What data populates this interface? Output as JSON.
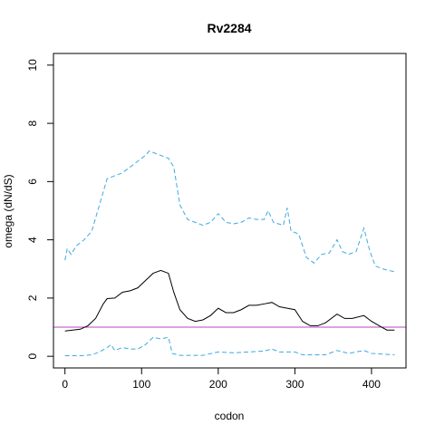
{
  "chart_data": {
    "type": "line",
    "title": "Rv2284",
    "xlabel": "codon",
    "ylabel": "omega (dN/dS)",
    "xlim": [
      -15,
      445
    ],
    "ylim": [
      -0.4,
      10.4
    ],
    "xticks": [
      0,
      100,
      200,
      300,
      400
    ],
    "yticks": [
      0,
      2,
      4,
      6,
      8,
      10
    ],
    "grid": false,
    "reference_line": {
      "y": 1,
      "color": "#bb44bb"
    },
    "series": [
      {
        "style": "solid",
        "color": "#000000",
        "points": [
          [
            0,
            0.87
          ],
          [
            10,
            0.9
          ],
          [
            20,
            0.93
          ],
          [
            30,
            1.05
          ],
          [
            40,
            1.3
          ],
          [
            50,
            1.8
          ],
          [
            55,
            1.98
          ],
          [
            65,
            2.0
          ],
          [
            75,
            2.2
          ],
          [
            85,
            2.25
          ],
          [
            95,
            2.35
          ],
          [
            105,
            2.6
          ],
          [
            115,
            2.85
          ],
          [
            125,
            2.95
          ],
          [
            135,
            2.85
          ],
          [
            142,
            2.2
          ],
          [
            150,
            1.6
          ],
          [
            160,
            1.3
          ],
          [
            170,
            1.2
          ],
          [
            180,
            1.25
          ],
          [
            190,
            1.4
          ],
          [
            200,
            1.65
          ],
          [
            210,
            1.5
          ],
          [
            220,
            1.5
          ],
          [
            230,
            1.6
          ],
          [
            240,
            1.75
          ],
          [
            250,
            1.75
          ],
          [
            260,
            1.8
          ],
          [
            270,
            1.85
          ],
          [
            280,
            1.7
          ],
          [
            290,
            1.65
          ],
          [
            300,
            1.6
          ],
          [
            310,
            1.2
          ],
          [
            320,
            1.05
          ],
          [
            330,
            1.05
          ],
          [
            340,
            1.15
          ],
          [
            355,
            1.45
          ],
          [
            365,
            1.3
          ],
          [
            375,
            1.3
          ],
          [
            390,
            1.4
          ],
          [
            400,
            1.2
          ],
          [
            410,
            1.05
          ],
          [
            420,
            0.9
          ],
          [
            430,
            0.9
          ]
        ]
      },
      {
        "style": "dashed",
        "color": "#3fa9e0",
        "points": [
          [
            0,
            3.3
          ],
          [
            3,
            3.7
          ],
          [
            8,
            3.5
          ],
          [
            15,
            3.8
          ],
          [
            25,
            4.0
          ],
          [
            35,
            4.3
          ],
          [
            45,
            5.2
          ],
          [
            55,
            6.1
          ],
          [
            65,
            6.2
          ],
          [
            75,
            6.3
          ],
          [
            85,
            6.5
          ],
          [
            95,
            6.7
          ],
          [
            105,
            6.9
          ],
          [
            110,
            7.05
          ],
          [
            125,
            6.9
          ],
          [
            135,
            6.8
          ],
          [
            142,
            6.5
          ],
          [
            150,
            5.2
          ],
          [
            160,
            4.7
          ],
          [
            170,
            4.6
          ],
          [
            180,
            4.5
          ],
          [
            190,
            4.6
          ],
          [
            200,
            4.9
          ],
          [
            210,
            4.6
          ],
          [
            220,
            4.55
          ],
          [
            230,
            4.6
          ],
          [
            240,
            4.75
          ],
          [
            250,
            4.7
          ],
          [
            260,
            4.7
          ],
          [
            265,
            5.0
          ],
          [
            272,
            4.6
          ],
          [
            285,
            4.5
          ],
          [
            290,
            5.1
          ],
          [
            295,
            4.3
          ],
          [
            305,
            4.2
          ],
          [
            315,
            3.4
          ],
          [
            325,
            3.2
          ],
          [
            335,
            3.5
          ],
          [
            345,
            3.55
          ],
          [
            355,
            4.0
          ],
          [
            362,
            3.6
          ],
          [
            370,
            3.5
          ],
          [
            380,
            3.6
          ],
          [
            390,
            4.4
          ],
          [
            398,
            3.6
          ],
          [
            405,
            3.1
          ],
          [
            415,
            3.0
          ],
          [
            430,
            2.9
          ]
        ]
      },
      {
        "style": "dashed",
        "color": "#3fa9e0",
        "points": [
          [
            0,
            0.02
          ],
          [
            20,
            0.02
          ],
          [
            35,
            0.05
          ],
          [
            45,
            0.15
          ],
          [
            55,
            0.3
          ],
          [
            60,
            0.4
          ],
          [
            65,
            0.2
          ],
          [
            75,
            0.3
          ],
          [
            85,
            0.25
          ],
          [
            95,
            0.25
          ],
          [
            105,
            0.4
          ],
          [
            115,
            0.65
          ],
          [
            125,
            0.6
          ],
          [
            135,
            0.65
          ],
          [
            140,
            0.1
          ],
          [
            150,
            0.03
          ],
          [
            180,
            0.03
          ],
          [
            200,
            0.15
          ],
          [
            220,
            0.12
          ],
          [
            240,
            0.15
          ],
          [
            260,
            0.18
          ],
          [
            270,
            0.25
          ],
          [
            280,
            0.15
          ],
          [
            300,
            0.15
          ],
          [
            310,
            0.05
          ],
          [
            340,
            0.05
          ],
          [
            355,
            0.2
          ],
          [
            370,
            0.1
          ],
          [
            390,
            0.2
          ],
          [
            400,
            0.1
          ],
          [
            430,
            0.05
          ]
        ]
      }
    ]
  }
}
